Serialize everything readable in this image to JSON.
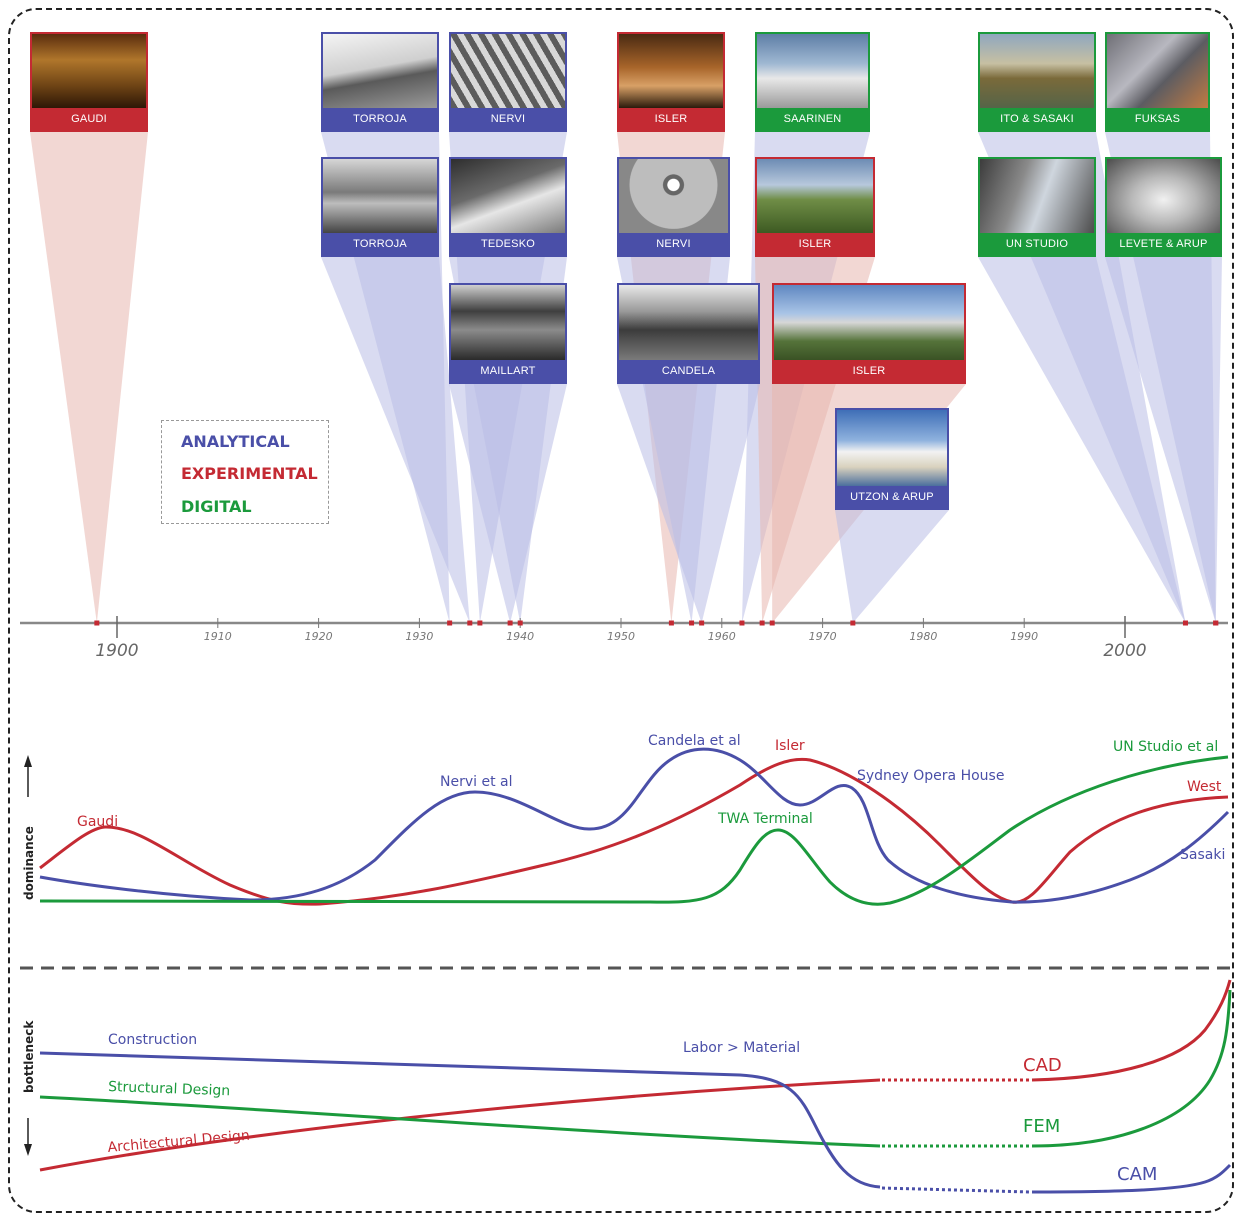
{
  "colors": {
    "analytical": "#4a4fa8",
    "experimental": "#c42a33",
    "digital": "#1b9a3c",
    "analytical_fan": "#b9bee6",
    "experimental_fan": "#e7b7ae",
    "axis": "#888888"
  },
  "legend": {
    "analytical": "ANALYTICAL",
    "experimental": "EXPERIMENTAL",
    "digital": "DIGITAL"
  },
  "timeline": {
    "major_labels": [
      "1900",
      "2000"
    ],
    "minor_labels": [
      "1910",
      "1920",
      "1930",
      "1940",
      "1950",
      "1960",
      "1970",
      "1980",
      "1990"
    ]
  },
  "tiles": [
    {
      "label": "GAUDI",
      "category": "experimental",
      "year": 1898,
      "photo": "cathedral"
    },
    {
      "label": "TORROJA",
      "category": "analytical",
      "year": 1933,
      "photo": "canopy"
    },
    {
      "label": "NERVI",
      "category": "analytical",
      "year": 1936,
      "photo": "ribs"
    },
    {
      "label": "ISLER",
      "category": "experimental",
      "year": 1955,
      "photo": "interior"
    },
    {
      "label": "SAARINEN",
      "category": "digital",
      "year": 1962,
      "photo": "terminal"
    },
    {
      "label": "ITO & SASAKI",
      "category": "digital",
      "year": 2006,
      "photo": "waterfront"
    },
    {
      "label": "FUKSAS",
      "category": "digital",
      "year": 2009,
      "photo": "tube"
    },
    {
      "label": "TORROJA",
      "category": "analytical",
      "year": 1935,
      "photo": "roof"
    },
    {
      "label": "TEDESKO",
      "category": "analytical",
      "year": 1940,
      "photo": "sketch"
    },
    {
      "label": "NERVI",
      "category": "analytical",
      "year": 1957,
      "photo": "dome"
    },
    {
      "label": "ISLER",
      "category": "experimental",
      "year": 1964,
      "photo": "shell"
    },
    {
      "label": "UN STUDIO",
      "category": "digital",
      "year": 2006,
      "photo": "curve"
    },
    {
      "label": "LEVETE & ARUP",
      "category": "digital",
      "year": 2009,
      "photo": "tunnel"
    },
    {
      "label": "MAILLART",
      "category": "analytical",
      "year": 1939,
      "photo": "arch"
    },
    {
      "label": "CANDELA",
      "category": "analytical",
      "year": 1958,
      "photo": "hyppar"
    },
    {
      "label": "ISLER",
      "category": "experimental",
      "year": 1965,
      "photo": "station"
    },
    {
      "label": "UTZON & ARUP",
      "category": "analytical",
      "year": 1973,
      "photo": "opera"
    }
  ],
  "dominance": {
    "ylabel": "dominance",
    "labels": {
      "gaudi": "Gaudi",
      "nervi": "Nervi et al",
      "candela": "Candela et al",
      "isler": "Isler",
      "sydney": "Sydney Opera House",
      "twa": "TWA  Terminal",
      "unstudio": "UN Studio et al",
      "west": "West",
      "sasaki": "Sasaki"
    }
  },
  "bottleneck": {
    "ylabel": "bottleneck",
    "labels": {
      "construction": "Construction",
      "structural": "Structural Design",
      "architectural": "Architectural Design",
      "labor": "Labor > Material",
      "cad": "CAD",
      "fem": "FEM",
      "cam": "CAM"
    }
  }
}
